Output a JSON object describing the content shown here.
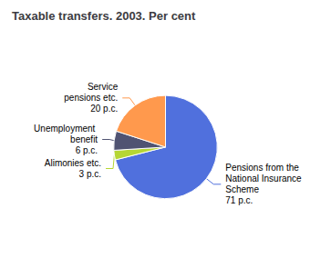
{
  "chart_data": {
    "type": "pie",
    "title": "Taxable transfers. 2003. Per cent",
    "categories": [
      "Pensions from the National Insurance Scheme",
      "Alimonies etc.",
      "Unemployment benefit",
      "Service\npensions etc."
    ],
    "values": [
      71,
      3,
      6,
      20
    ],
    "value_labels": [
      "71 p.c.",
      "3 p.c.",
      "6 p.c.",
      "20 p.c."
    ],
    "data_labels": true
  }
}
